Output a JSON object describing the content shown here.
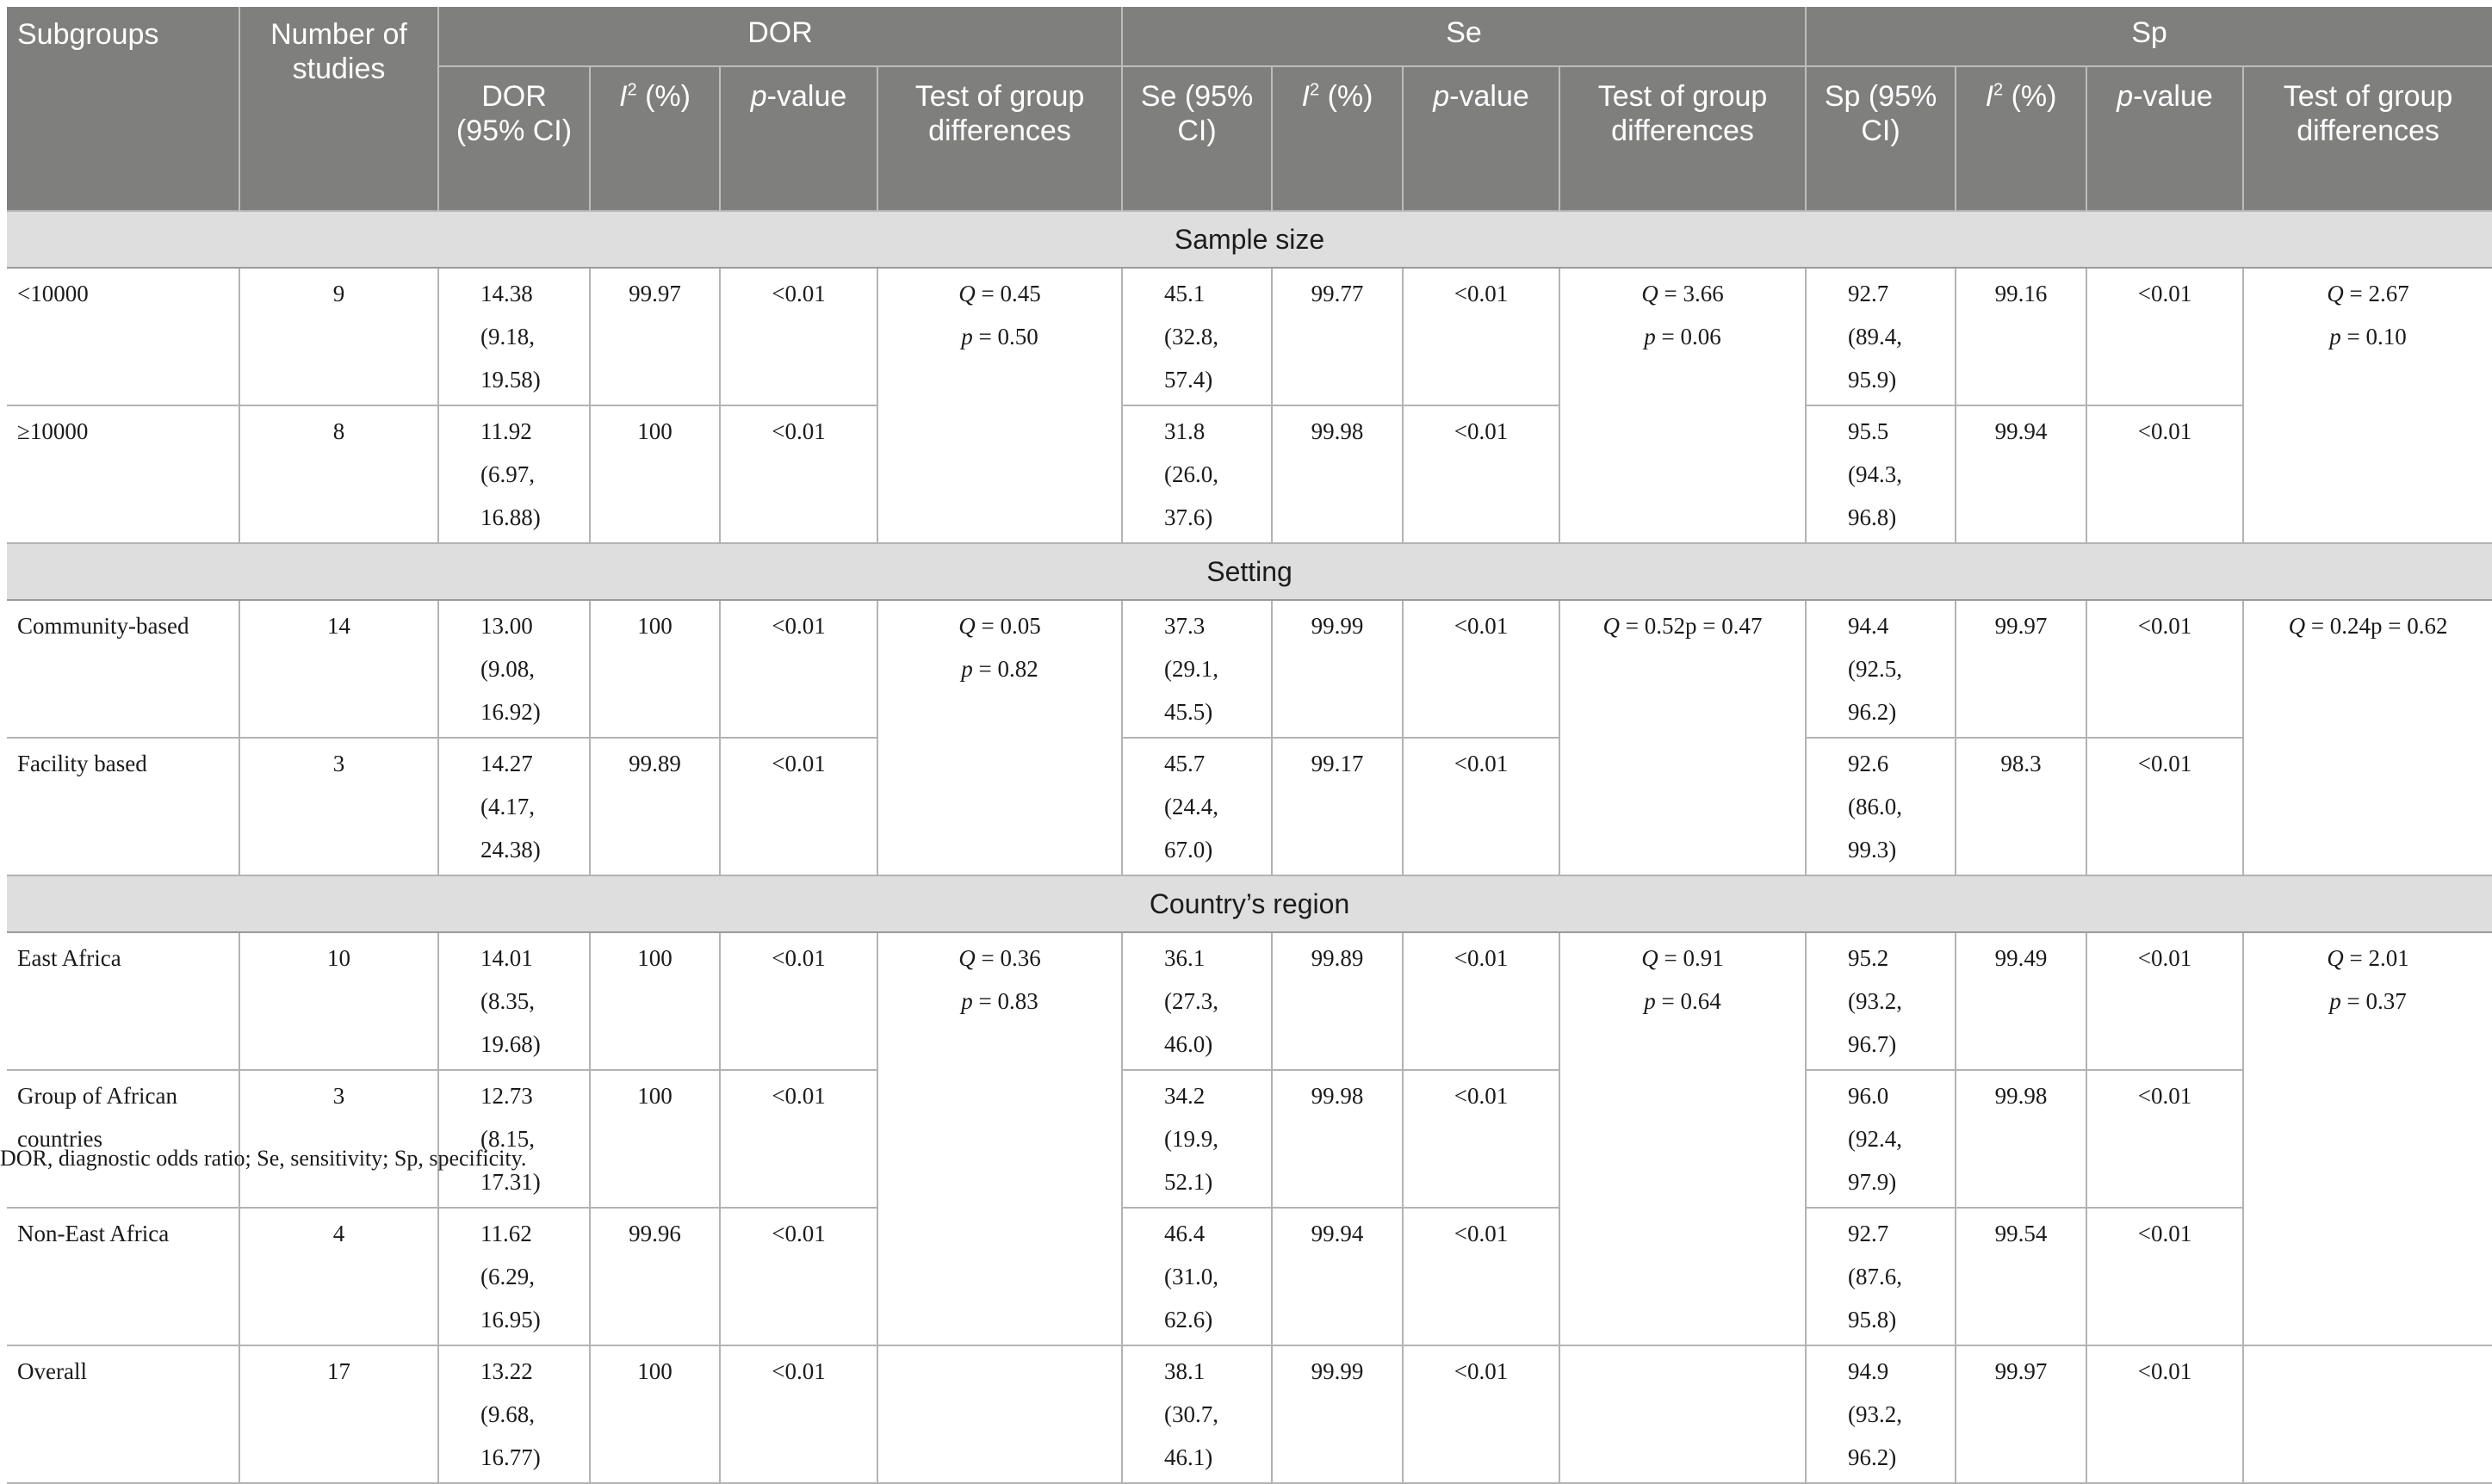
{
  "header": {
    "subgroups": "Subgroups",
    "number_of_studies": "Number of studies",
    "groups": [
      "DOR",
      "Se",
      "Sp"
    ],
    "dor_sub": {
      "est": "DOR (95% CI)",
      "i2_letter": "I",
      "i2_sup": "2",
      "i2_rest": " (%)",
      "p_italic": "p",
      "p_rest": "-value",
      "test": "Test of group differences"
    },
    "se_sub": {
      "est": "Se (95% CI)",
      "i2_letter": "I",
      "i2_sup": "2",
      "i2_rest": " (%)",
      "p_italic": "p",
      "p_rest": "-value",
      "test": "Test of group differences"
    },
    "sp_sub": {
      "est": "Sp (95% CI)",
      "i2_letter": "I",
      "i2_sup": "2",
      "i2_rest": " (%)",
      "p_italic": "p",
      "p_rest": "-value",
      "test": "Test of group differences"
    }
  },
  "sections": [
    {
      "title": "Sample size",
      "rows": [
        {
          "subgroup": "<10000",
          "n": "9",
          "dor": [
            "14.38 (9.18,",
            "19.58)"
          ],
          "dor_i2": "99.97",
          "dor_p": "<0.01",
          "se": [
            "45.1 (32.8,",
            "57.4)"
          ],
          "se_i2": "99.77",
          "se_p": "<0.01",
          "sp": [
            "92.7 (89.4,",
            "95.9)"
          ],
          "sp_i2": "99.16",
          "sp_p": "<0.01"
        },
        {
          "subgroup": "≥10000",
          "n": "8",
          "dor": [
            "11.92 (6.97,",
            "16.88)"
          ],
          "dor_i2": "100",
          "dor_p": "<0.01",
          "se": [
            "31.8 (26.0,",
            "37.6)"
          ],
          "se_i2": "99.98",
          "se_p": "<0.01",
          "sp": [
            "95.5 (94.3,",
            "96.8)"
          ],
          "sp_i2": "99.94",
          "sp_p": "<0.01"
        }
      ],
      "tests": {
        "dor": {
          "q_label": "Q",
          "q_val": " = 0.45",
          "p_label": "p",
          "p_val": " = 0.50"
        },
        "se": {
          "q_label": "Q",
          "q_val": " = 3.66",
          "p_label": "p",
          "p_val": " = 0.06"
        },
        "sp": {
          "q_label": "Q",
          "q_val": " = 2.67",
          "p_label": "p",
          "p_val": " = 0.10"
        }
      }
    },
    {
      "title": "Setting",
      "rows": [
        {
          "subgroup": "Community-based",
          "n": "14",
          "dor": [
            "13.00 (9.08,",
            "16.92)"
          ],
          "dor_i2": "100",
          "dor_p": "<0.01",
          "se": [
            "37.3 (29.1,",
            "45.5)"
          ],
          "se_i2": "99.99",
          "se_p": "<0.01",
          "sp": [
            "94.4 (92.5,",
            "96.2)"
          ],
          "sp_i2": "99.97",
          "sp_p": "<0.01"
        },
        {
          "subgroup": "Facility based",
          "n": "3",
          "dor": [
            "14.27 (4.17,",
            "24.38)"
          ],
          "dor_i2": "99.89",
          "dor_p": "<0.01",
          "se": [
            "45.7 (24.4,",
            "67.0)"
          ],
          "se_i2": "99.17",
          "se_p": "<0.01",
          "sp": [
            "92.6 (86.0,",
            "99.3)"
          ],
          "sp_i2": "98.3",
          "sp_p": "<0.01"
        }
      ],
      "tests": {
        "dor": {
          "q_label": "Q",
          "q_val": " = 0.05",
          "p_label": "p",
          "p_val": " = 0.82"
        },
        "se": {
          "q_label": "Q",
          "q_val": " = 0.52p = 0.47"
        },
        "sp": {
          "q_label": "Q",
          "q_val": " = 0.24p = 0.62"
        }
      }
    },
    {
      "title": "Country’s region",
      "rows": [
        {
          "subgroup": "East Africa",
          "n": "10",
          "dor": [
            "14.01 (8.35,",
            "19.68)"
          ],
          "dor_i2": "100",
          "dor_p": "<0.01",
          "se": [
            "36.1 (27.3,",
            "46.0)"
          ],
          "se_i2": "99.89",
          "se_p": "<0.01",
          "sp": [
            "95.2 (93.2,",
            "96.7)"
          ],
          "sp_i2": "99.49",
          "sp_p": "<0.01"
        },
        {
          "subgroup": [
            "Group of African",
            "countries"
          ],
          "n": "3",
          "dor": [
            "12.73 (8.15,",
            "17.31)"
          ],
          "dor_i2": "100",
          "dor_p": "<0.01",
          "se": [
            "34.2 (19.9,",
            "52.1)"
          ],
          "se_i2": "99.98",
          "se_p": "<0.01",
          "sp": [
            "96.0 (92.4,",
            "97.9)"
          ],
          "sp_i2": "99.98",
          "sp_p": "<0.01"
        },
        {
          "subgroup": "Non-East Africa",
          "n": "4",
          "dor": [
            "11.62 (6.29,",
            "16.95)"
          ],
          "dor_i2": "99.96",
          "dor_p": "<0.01",
          "se": [
            "46.4 (31.0,",
            "62.6)"
          ],
          "se_i2": "99.94",
          "se_p": "<0.01",
          "sp": [
            "92.7 (87.6,",
            "95.8)"
          ],
          "sp_i2": "99.54",
          "sp_p": "<0.01"
        },
        {
          "subgroup": "Overall",
          "n": "17",
          "dor": [
            "13.22 (9.68,",
            "16.77)"
          ],
          "dor_i2": "100",
          "dor_p": "<0.01",
          "se": [
            "38.1 (30.7,",
            "46.1)"
          ],
          "se_i2": "99.99",
          "se_p": "<0.01",
          "sp": [
            "94.9 (93.2,",
            "96.2)"
          ],
          "sp_i2": "99.97",
          "sp_p": "<0.01"
        }
      ],
      "tests": {
        "dor": {
          "q_label": "Q",
          "q_val": " = 0.36",
          "p_label": "p",
          "p_val": " = 0.83"
        },
        "se": {
          "q_label": "Q",
          "q_val": " = 0.91",
          "p_label": "p",
          "p_val": " = 0.64"
        },
        "sp": {
          "q_label": "Q",
          "q_val": " = 2.01",
          "p_label": "p",
          "p_val": " = 0.37"
        }
      }
    }
  ],
  "footnote": "DOR, diagnostic odds ratio; Se, sensitivity; Sp, specificity."
}
